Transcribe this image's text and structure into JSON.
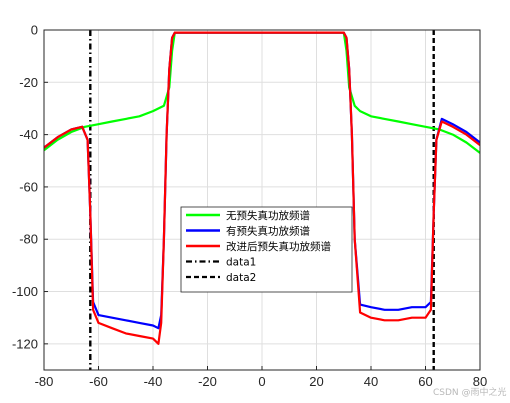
{
  "chart_data": {
    "type": "line",
    "title": "",
    "xlabel": "",
    "ylabel": "",
    "xlim": [
      -80,
      80
    ],
    "ylim": [
      -130,
      0
    ],
    "grid": true,
    "legend_position": "center",
    "xticks": [
      "-80",
      "-60",
      "-40",
      "-20",
      "0",
      "20",
      "40",
      "60",
      "80"
    ],
    "xtick_values": [
      -80,
      -60,
      -40,
      -20,
      0,
      20,
      40,
      60,
      80
    ],
    "yticks": [
      "0",
      "-20",
      "-40",
      "-60",
      "-80",
      "-100",
      "-120"
    ],
    "ytick_values": [
      0,
      -20,
      -40,
      -60,
      -80,
      -100,
      -120
    ],
    "series": [
      {
        "name": "无预失真功放频谱",
        "color": "#00ff00",
        "style": "solid",
        "x": [
          -80,
          -75,
          -70,
          -65,
          -60,
          -55,
          -50,
          -45,
          -40,
          -36,
          -34,
          -33,
          -32,
          -30,
          -20,
          -10,
          0,
          10,
          20,
          28,
          30,
          31,
          32,
          34,
          36,
          40,
          45,
          50,
          55,
          60,
          65,
          70,
          75,
          80
        ],
        "y": [
          -46,
          -42,
          -39,
          -37,
          -36,
          -35,
          -34,
          -33,
          -31,
          -29,
          -22,
          -8,
          -1,
          -1,
          -1,
          -1,
          -1,
          -1,
          -1,
          -1,
          -1,
          -8,
          -22,
          -29,
          -31,
          -33,
          -34,
          -35,
          -36,
          -37,
          -38,
          -40,
          -43,
          -47
        ]
      },
      {
        "name": "有预失真功放频谱",
        "color": "#0000ff",
        "style": "solid",
        "x": [
          -80,
          -75,
          -70,
          -66,
          -64,
          -63,
          -62,
          -60,
          -55,
          -50,
          -45,
          -40,
          -38,
          -37,
          -36,
          -35,
          -34,
          -33,
          -32,
          -30,
          -20,
          -10,
          0,
          10,
          20,
          28,
          30,
          31,
          32,
          33,
          34,
          36,
          40,
          45,
          50,
          55,
          60,
          62,
          63,
          64,
          66,
          70,
          75,
          80
        ],
        "y": [
          -45,
          -41,
          -38,
          -37,
          -42,
          -70,
          -104,
          -109,
          -110,
          -111,
          -112,
          -113,
          -114,
          -109,
          -80,
          -40,
          -15,
          -3,
          -1,
          -1,
          -1,
          -1,
          -1,
          -1,
          -1,
          -1,
          -1,
          -3,
          -15,
          -40,
          -80,
          -105,
          -106,
          -107,
          -107,
          -106,
          -106,
          -104,
          -70,
          -42,
          -34,
          -36,
          -39,
          -43
        ]
      },
      {
        "name": "改进后预失真功放频谱",
        "color": "#ff0000",
        "style": "solid",
        "x": [
          -80,
          -75,
          -70,
          -66,
          -64,
          -63,
          -62,
          -60,
          -55,
          -50,
          -45,
          -40,
          -38,
          -37,
          -36,
          -35,
          -34,
          -33,
          -32,
          -30,
          -20,
          -10,
          0,
          10,
          20,
          28,
          30,
          31,
          32,
          33,
          34,
          36,
          40,
          45,
          50,
          55,
          60,
          62,
          63,
          64,
          66,
          70,
          75,
          80
        ],
        "y": [
          -45,
          -41,
          -38,
          -37,
          -42,
          -70,
          -107,
          -112,
          -114,
          -116,
          -117,
          -118,
          -120,
          -112,
          -80,
          -40,
          -15,
          -3,
          -1,
          -1,
          -1,
          -1,
          -1,
          -1,
          -1,
          -1,
          -1,
          -3,
          -15,
          -40,
          -80,
          -108,
          -110,
          -111,
          -111,
          -110,
          -110,
          -107,
          -70,
          -42,
          -35,
          -37,
          -40,
          -44
        ]
      },
      {
        "name": "data1",
        "color": "#000000",
        "style": "dashdot",
        "x": [
          -63,
          -63
        ],
        "y": [
          0,
          -130
        ]
      },
      {
        "name": "data2",
        "color": "#000000",
        "style": "dashed",
        "x": [
          63,
          63
        ],
        "y": [
          0,
          -130
        ]
      }
    ]
  },
  "watermark": "CSDN @雨中之光"
}
